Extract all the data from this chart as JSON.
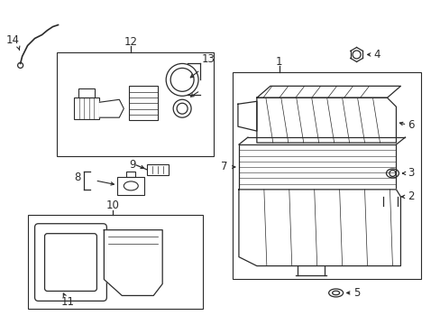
{
  "bg_color": "#ffffff",
  "line_color": "#2a2a2a",
  "label_color": "#111111",
  "fig_width": 4.89,
  "fig_height": 3.6,
  "dpi": 100
}
